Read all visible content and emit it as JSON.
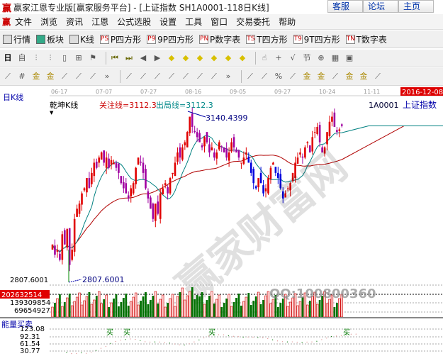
{
  "window": {
    "title": "赢家江恩专业版[赢家服务平台] - [上证指数  SH1A0001-118日K线]",
    "logo": "赢",
    "buttons": [
      "客服",
      "论坛",
      "主页"
    ]
  },
  "menu": [
    "文件",
    "浏览",
    "资讯",
    "江恩",
    "公式选股",
    "设置",
    "工具",
    "窗口",
    "交易委托",
    "帮助"
  ],
  "toolbar1": [
    {
      "icon": "grid-icon",
      "label": "行情"
    },
    {
      "icon": "blocks-icon",
      "label": "板块"
    },
    {
      "icon": "kline-icon",
      "label": "K线"
    },
    {
      "icon": "PS",
      "label": "P四方形"
    },
    {
      "icon": "P9",
      "label": "9P四方形"
    },
    {
      "icon": "PN",
      "label": "P数字表"
    },
    {
      "icon": "TS",
      "label": "T四方形"
    },
    {
      "icon": "T9",
      "label": "9T四方形"
    },
    {
      "icon": "TN",
      "label": "T数字表"
    }
  ],
  "toolbar2": {
    "period": "日",
    "icons": [
      "self-select-icon",
      "bar3-icon",
      "bar9-icon",
      "candle-icon",
      "zoom-icon",
      "flag-icon",
      "first-icon",
      "last-icon",
      "prev-icon",
      "next-icon",
      "diamond-left-icon",
      "diamond-right-icon",
      "diamond-lr-icon",
      "diamond-in-icon",
      "diamond-cross-icon",
      "diamond-ud-icon",
      "hand-icon",
      "crosshair-icon",
      "wave-icon",
      "node-icon",
      "pattern-icon",
      "calendar-icon",
      "calculator-icon"
    ]
  },
  "toolbar3": {
    "icons": [
      "pen-icon",
      "hash-icon",
      "gold1-icon",
      "gold2-icon",
      "fib-icon",
      "spiral-icon",
      "pen-ruler-icon",
      "more-icon",
      "box-icon",
      "fan-icon",
      "box-fan-icon",
      "grid-fan-icon",
      "angle-icon",
      "v-icon",
      "table-icon",
      "more-icon",
      "bars-icon",
      "percent-line-icon",
      "percent-icon",
      "percent2-icon",
      "gold-coin-icon",
      "gold-line-icon",
      "arrow-pen-icon",
      "gold-box-icon",
      "gold-tri-icon",
      "angle2-icon"
    ],
    "percent": "%"
  },
  "chart": {
    "panel_label": "日K线",
    "indicator": "乾坤K线",
    "focus_line": "关注线=3112.3",
    "exit_line": "出局线=3112.3",
    "code": "1A0001",
    "name": "上证指数",
    "current_date": "2016-12-08",
    "dates": [
      "06-17",
      "07-07",
      "07-27",
      "08-16",
      "09-05",
      "09-27",
      "10-24",
      "11-11"
    ],
    "high_label": "3140.4399",
    "low_label": "2807.6001",
    "low_axis": "2807.6001",
    "closes": [
      2880,
      2860,
      2870,
      2850,
      2900,
      2880,
      2910,
      2840,
      2870,
      2930,
      2950,
      2960,
      2980,
      2990,
      3010,
      2990,
      3020,
      3040,
      3030,
      3050,
      3060,
      3040,
      3050,
      3030,
      3045,
      3040,
      3030,
      3020,
      3000,
      2990,
      2980,
      2970,
      2990,
      3000,
      3030,
      3050,
      3040,
      3020,
      2990,
      2970,
      2950,
      2930,
      2960,
      2940,
      2980,
      2990,
      3000,
      2980,
      3010,
      3020,
      3040,
      3060,
      3050,
      3070,
      3080,
      3100,
      3130,
      3110,
      3100,
      3090,
      3080,
      3070,
      3090,
      3080,
      3060,
      3070,
      3050,
      3060,
      3080,
      3070,
      3060,
      3050,
      3060,
      3080,
      3070,
      3060,
      3050,
      3040,
      3050,
      3060,
      3040,
      3020,
      3000,
      2990,
      3010,
      3000,
      2980,
      2990,
      3010,
      3030,
      3040,
      3020,
      3010,
      2990,
      2970,
      2980,
      2990,
      3000,
      3020,
      3040,
      3050,
      3060,
      3050,
      3070,
      3080,
      3060,
      3090,
      3100,
      3110,
      3080,
      3060,
      3070,
      3100,
      3120,
      3130,
      3110,
      3100,
      3105,
      3112
    ],
    "colors": {
      "up": "#e00000",
      "down": "#0000dd",
      "ma_short": "#008080",
      "ma_long": "#b00000",
      "vol_up": "#cc0000",
      "vol_down": "#007000"
    }
  },
  "volume": {
    "current": "202632514",
    "ticks": [
      "139309854",
      "69654927"
    ],
    "watermark": "QQ:100800360"
  },
  "energy": {
    "label": "能量买卖",
    "ticks": [
      "123.08",
      "92.31",
      "61.54",
      "30.77"
    ],
    "buy_marks": [
      "买",
      "买",
      "买",
      "买"
    ]
  }
}
